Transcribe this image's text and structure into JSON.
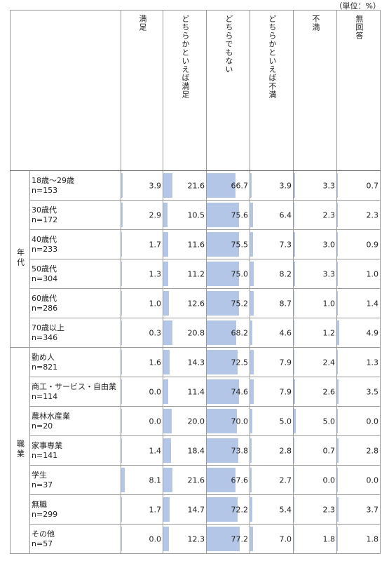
{
  "unit_note": "（単位：%）",
  "columns": [
    "満足",
    "どちらかといえば満足",
    "どちらでもない",
    "どちらかといえば不満",
    "不満",
    "無回答"
  ],
  "groups": [
    {
      "label": "年代",
      "rows": [
        {
          "name": "18歳～29歳",
          "n": "n=153",
          "values": [
            "3.9",
            "21.6",
            "66.7",
            "3.9",
            "3.3",
            "0.7"
          ]
        },
        {
          "name": "30歳代",
          "n": "n=172",
          "values": [
            "2.9",
            "10.5",
            "75.6",
            "6.4",
            "2.3",
            "2.3"
          ]
        },
        {
          "name": "40歳代",
          "n": "n=233",
          "values": [
            "1.7",
            "11.6",
            "75.5",
            "7.3",
            "3.0",
            "0.9"
          ]
        },
        {
          "name": "50歳代",
          "n": "n=304",
          "values": [
            "1.3",
            "11.2",
            "75.0",
            "8.2",
            "3.3",
            "1.0"
          ]
        },
        {
          "name": "60歳代",
          "n": "n=286",
          "values": [
            "1.0",
            "12.6",
            "75.2",
            "8.7",
            "1.0",
            "1.4"
          ]
        },
        {
          "name": "70歳以上",
          "n": "n=346",
          "values": [
            "0.3",
            "20.8",
            "68.2",
            "4.6",
            "1.2",
            "4.9"
          ]
        }
      ]
    },
    {
      "label": "職業",
      "rows": [
        {
          "name": "勤め人",
          "n": "n=821",
          "values": [
            "1.6",
            "14.3",
            "72.5",
            "7.9",
            "2.4",
            "1.3"
          ]
        },
        {
          "name": "商工・サービス・自由業",
          "n": "n=114",
          "values": [
            "0.0",
            "11.4",
            "74.6",
            "7.9",
            "2.6",
            "3.5"
          ]
        },
        {
          "name": "農林水産業",
          "n": "n=20",
          "values": [
            "0.0",
            "20.0",
            "70.0",
            "5.0",
            "5.0",
            "0.0"
          ]
        },
        {
          "name": "家事専業",
          "n": "n=141",
          "values": [
            "1.4",
            "18.4",
            "73.8",
            "2.8",
            "0.7",
            "2.8"
          ]
        },
        {
          "name": "学生",
          "n": "n=37",
          "values": [
            "8.1",
            "21.6",
            "67.6",
            "2.7",
            "0.0",
            "0.0"
          ]
        },
        {
          "name": "無職",
          "n": "n=299",
          "values": [
            "1.7",
            "14.7",
            "72.2",
            "5.4",
            "2.3",
            "3.7"
          ]
        },
        {
          "name": "その他",
          "n": "n=57",
          "values": [
            "0.0",
            "12.3",
            "77.2",
            "7.0",
            "1.8",
            "1.8"
          ]
        }
      ]
    }
  ],
  "bar_color": "#b4c6e7",
  "bar_full_scale": 100
}
